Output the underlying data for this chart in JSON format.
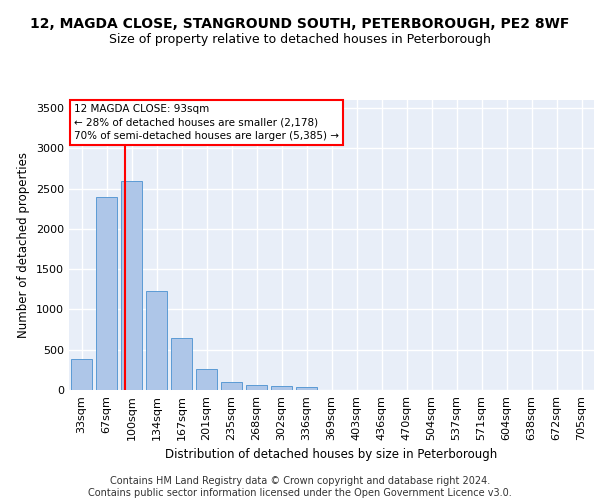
{
  "title": "12, MAGDA CLOSE, STANGROUND SOUTH, PETERBOROUGH, PE2 8WF",
  "subtitle": "Size of property relative to detached houses in Peterborough",
  "xlabel": "Distribution of detached houses by size in Peterborough",
  "ylabel": "Number of detached properties",
  "categories": [
    "33sqm",
    "67sqm",
    "100sqm",
    "134sqm",
    "167sqm",
    "201sqm",
    "235sqm",
    "268sqm",
    "302sqm",
    "336sqm",
    "369sqm",
    "403sqm",
    "436sqm",
    "470sqm",
    "504sqm",
    "537sqm",
    "571sqm",
    "604sqm",
    "638sqm",
    "672sqm",
    "705sqm"
  ],
  "values": [
    390,
    2400,
    2600,
    1230,
    640,
    260,
    95,
    60,
    55,
    40,
    0,
    0,
    0,
    0,
    0,
    0,
    0,
    0,
    0,
    0,
    0
  ],
  "bar_color": "#aec6e8",
  "bar_edge_color": "#5b9bd5",
  "vline_pos": 1.73,
  "vline_color": "red",
  "annotation_text": "12 MAGDA CLOSE: 93sqm\n← 28% of detached houses are smaller (2,178)\n70% of semi-detached houses are larger (5,385) →",
  "annotation_box_color": "white",
  "annotation_box_edge": "red",
  "ylim": [
    0,
    3600
  ],
  "yticks": [
    0,
    500,
    1000,
    1500,
    2000,
    2500,
    3000,
    3500
  ],
  "background_color": "#e8eef8",
  "grid_color": "#ffffff",
  "footer": "Contains HM Land Registry data © Crown copyright and database right 2024.\nContains public sector information licensed under the Open Government Licence v3.0.",
  "title_fontsize": 10,
  "subtitle_fontsize": 9,
  "xlabel_fontsize": 8.5,
  "ylabel_fontsize": 8.5,
  "tick_fontsize": 8,
  "annotation_fontsize": 7.5,
  "footer_fontsize": 7
}
